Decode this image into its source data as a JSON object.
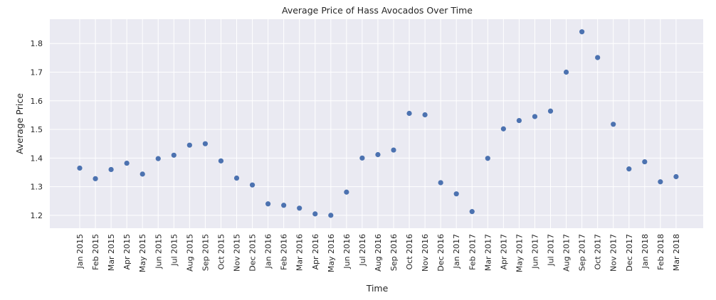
{
  "chart_data": {
    "type": "scatter",
    "title": "Average Price of Hass Avocados Over Time",
    "xlabel": "Time",
    "ylabel": "Average Price",
    "ylim": [
      1.155,
      1.885
    ],
    "yticks": [
      1.2,
      1.3,
      1.4,
      1.5,
      1.6,
      1.7,
      1.8
    ],
    "grid": true,
    "background": "#eaeaf2",
    "grid_color": "#ffffff",
    "point_color": "#4c72b0",
    "categories": [
      "Jan 2015",
      "Feb 2015",
      "Mar 2015",
      "Apr 2015",
      "May 2015",
      "Jun 2015",
      "Jul 2015",
      "Aug 2015",
      "Sep 2015",
      "Oct 2015",
      "Nov 2015",
      "Dec 2015",
      "Jan 2016",
      "Feb 2016",
      "Mar 2016",
      "Apr 2016",
      "May 2016",
      "Jun 2016",
      "Jul 2016",
      "Aug 2016",
      "Sep 2016",
      "Oct 2016",
      "Nov 2016",
      "Dec 2016",
      "Jan 2017",
      "Feb 2017",
      "Mar 2017",
      "Apr 2017",
      "May 2017",
      "Jun 2017",
      "Jul 2017",
      "Aug 2017",
      "Sep 2017",
      "Oct 2017",
      "Nov 2017",
      "Dec 2017",
      "Jan 2018",
      "Feb 2018",
      "Mar 2018"
    ],
    "values": [
      1.365,
      1.328,
      1.36,
      1.382,
      1.344,
      1.398,
      1.41,
      1.445,
      1.45,
      1.39,
      1.33,
      1.306,
      1.24,
      1.235,
      1.225,
      1.205,
      1.2,
      1.281,
      1.4,
      1.412,
      1.428,
      1.556,
      1.551,
      1.314,
      1.275,
      1.213,
      1.399,
      1.502,
      1.531,
      1.545,
      1.564,
      1.7,
      1.841,
      1.751,
      1.518,
      1.362,
      1.387,
      1.317,
      1.335
    ]
  }
}
